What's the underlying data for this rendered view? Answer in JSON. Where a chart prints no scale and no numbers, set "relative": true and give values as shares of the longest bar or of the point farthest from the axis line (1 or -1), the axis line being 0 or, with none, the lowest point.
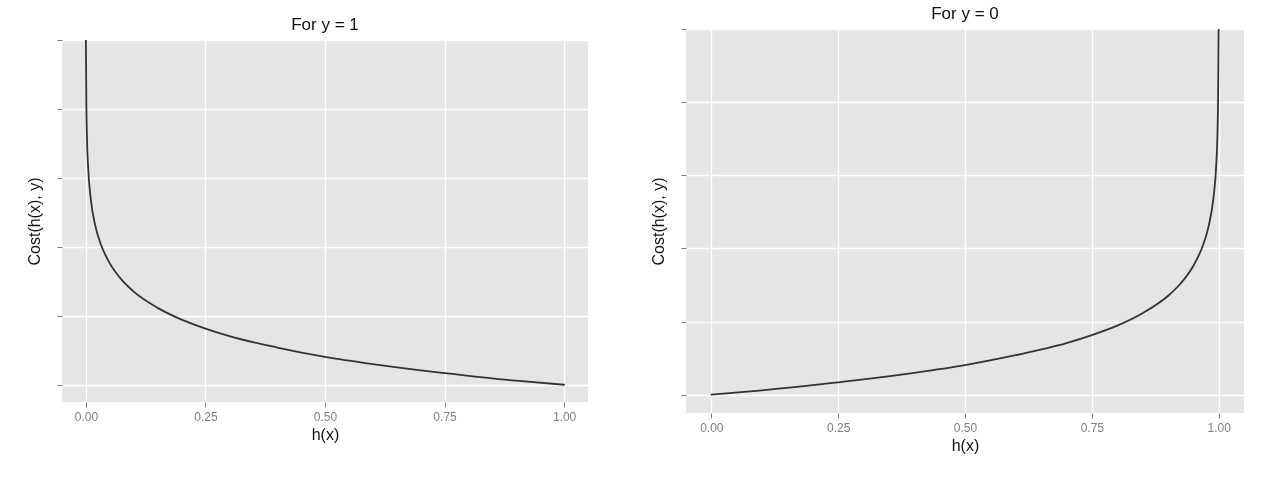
{
  "chart_data": [
    {
      "type": "line",
      "title": "For y = 1",
      "xlabel": "h(x)",
      "ylabel": "Cost(h(x), y)",
      "relative": true,
      "grid": true,
      "tick_labels": "x",
      "xlim": [
        -0.05,
        1.05
      ],
      "xticks": [
        {
          "value": 0,
          "label": "0.00"
        },
        {
          "value": 0.25,
          "label": "0.25"
        },
        {
          "value": 0.5,
          "label": "0.50"
        },
        {
          "value": 0.75,
          "label": "0.75"
        },
        {
          "value": 1,
          "label": "1.00"
        }
      ],
      "x": [
        0,
        0.001,
        0.002,
        0.005,
        0.01,
        0.02,
        0.03,
        0.05,
        0.075,
        0.1,
        0.15,
        0.2,
        0.25,
        0.3,
        0.4,
        0.5,
        0.6,
        0.7,
        0.75,
        0.8,
        0.9,
        1.0
      ],
      "series": [
        {
          "color": "#333333",
          "values": [
            1,
            0.811,
            0.73,
            0.622,
            0.541,
            0.459,
            0.412,
            0.352,
            0.304,
            0.27,
            0.223,
            0.189,
            0.163,
            0.141,
            0.108,
            0.081,
            0.06,
            0.042,
            0.034,
            0.026,
            0.012,
            0
          ]
        }
      ]
    },
    {
      "type": "line",
      "title": "For y = 0",
      "xlabel": "h(x)",
      "ylabel": "Cost(h(x), y)",
      "relative": true,
      "grid": true,
      "tick_labels": "x",
      "xlim": [
        -0.05,
        1.05
      ],
      "xticks": [
        {
          "value": 0,
          "label": "0.00"
        },
        {
          "value": 0.25,
          "label": "0.25"
        },
        {
          "value": 0.5,
          "label": "0.50"
        },
        {
          "value": 0.75,
          "label": "0.75"
        },
        {
          "value": 1,
          "label": "1.00"
        }
      ],
      "x": [
        0,
        0.1,
        0.2,
        0.25,
        0.3,
        0.4,
        0.5,
        0.6,
        0.7,
        0.75,
        0.8,
        0.85,
        0.9,
        0.925,
        0.95,
        0.97,
        0.98,
        0.99,
        0.995,
        0.998,
        0.999,
        1.0
      ],
      "series": [
        {
          "color": "#333333",
          "values": [
            0,
            0.012,
            0.026,
            0.034,
            0.042,
            0.06,
            0.081,
            0.108,
            0.141,
            0.163,
            0.189,
            0.223,
            0.27,
            0.304,
            0.352,
            0.412,
            0.459,
            0.541,
            0.622,
            0.73,
            0.811,
            1
          ]
        }
      ]
    }
  ]
}
